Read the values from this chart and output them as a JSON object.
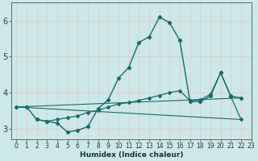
{
  "xlabel": "Humidex (Indice chaleur)",
  "bg_color": "#cce8e8",
  "grid_color": "#e8c8c8",
  "line_color": "#1a6b6b",
  "xlim": [
    -0.5,
    23
  ],
  "ylim": [
    2.7,
    6.5
  ],
  "yticks": [
    3,
    4,
    5,
    6
  ],
  "xticks": [
    0,
    1,
    2,
    3,
    4,
    5,
    6,
    7,
    8,
    9,
    10,
    11,
    12,
    13,
    14,
    15,
    16,
    17,
    18,
    19,
    20,
    21,
    22,
    23
  ],
  "curve1_x": [
    0,
    1,
    2,
    3,
    4,
    5,
    6,
    7,
    8,
    9,
    10,
    11,
    12,
    13,
    14,
    15,
    16,
    17,
    18,
    19,
    20,
    21,
    22
  ],
  "curve1_y": [
    3.6,
    3.6,
    3.25,
    3.2,
    3.15,
    2.9,
    2.95,
    3.05,
    3.55,
    3.8,
    4.4,
    4.7,
    5.4,
    5.55,
    6.1,
    5.95,
    5.45,
    3.75,
    3.75,
    3.9,
    4.55,
    3.9,
    3.85
  ],
  "curve2_x": [
    2,
    3,
    4,
    5,
    6,
    7,
    8,
    9,
    10,
    11,
    12,
    13,
    14,
    15,
    16,
    17,
    18,
    19,
    20,
    21,
    22
  ],
  "curve2_y": [
    3.25,
    3.2,
    3.25,
    3.3,
    3.35,
    3.45,
    3.5,
    3.6,
    3.68,
    3.72,
    3.78,
    3.85,
    3.92,
    4.0,
    4.05,
    3.78,
    3.8,
    3.95,
    4.55,
    3.88,
    3.25
  ],
  "line1_x": [
    0,
    22
  ],
  "line1_y": [
    3.6,
    3.25
  ],
  "line2_x": [
    0,
    22
  ],
  "line2_y": [
    3.6,
    3.85
  ]
}
